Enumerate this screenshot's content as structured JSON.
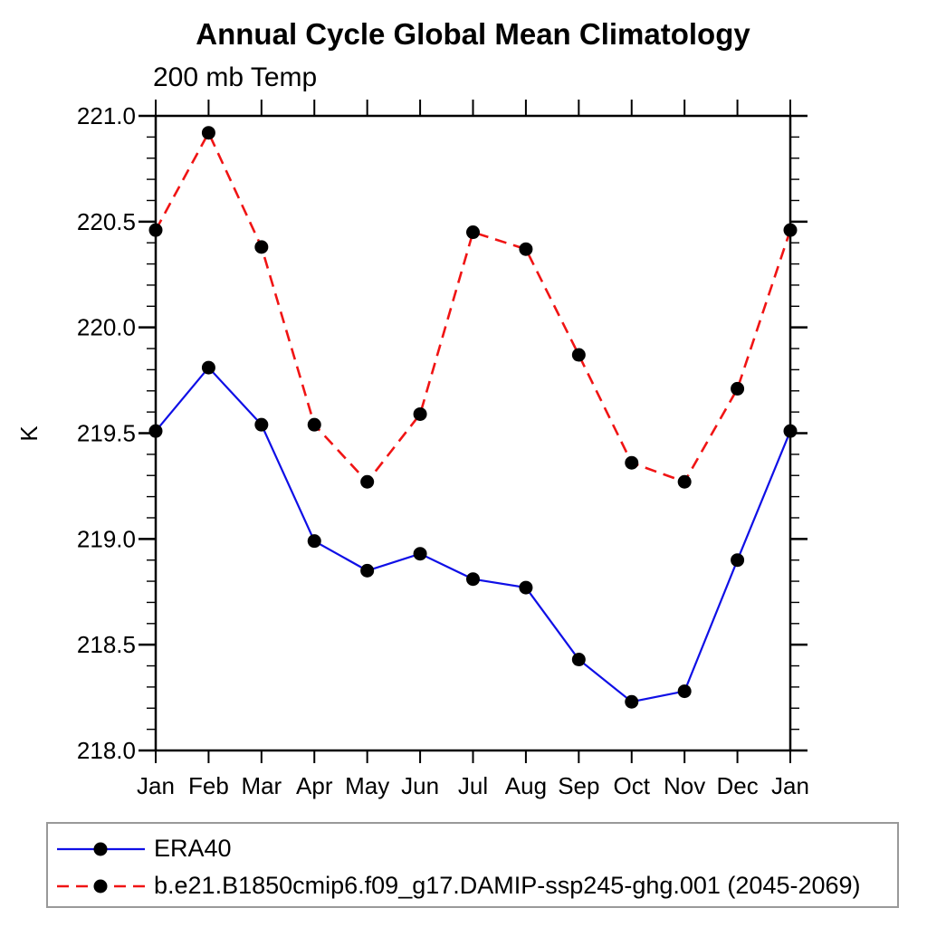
{
  "title": "Annual Cycle Global Mean Climatology",
  "subtitle": "200 mb Temp",
  "chart_data": {
    "type": "line",
    "categories": [
      "Jan",
      "Feb",
      "Mar",
      "Apr",
      "May",
      "Jun",
      "Jul",
      "Aug",
      "Sep",
      "Oct",
      "Nov",
      "Dec",
      "Jan"
    ],
    "xlabel": "",
    "ylabel": "K",
    "ylim": [
      218.0,
      221.0
    ],
    "ytick_major_step": 0.5,
    "ytick_minor_step": 0.1,
    "grid": false,
    "legend_position": "bottom",
    "marker": {
      "shape": "circle",
      "color": "#000000"
    },
    "series": [
      {
        "name": "ERA40",
        "color": "#0f0fe6",
        "line_style": "solid",
        "values": [
          219.51,
          219.81,
          219.54,
          218.99,
          218.85,
          218.93,
          218.81,
          218.77,
          218.43,
          218.23,
          218.28,
          218.9,
          219.51
        ]
      },
      {
        "name": "b.e21.B1850cmip6.f09_g17.DAMIP-ssp245-ghg.001 (2045-2069)",
        "color": "#f01414",
        "line_style": "dashed",
        "values": [
          220.46,
          220.92,
          220.38,
          219.54,
          219.27,
          219.59,
          220.45,
          220.37,
          219.87,
          219.36,
          219.27,
          219.71,
          220.46
        ]
      }
    ]
  }
}
